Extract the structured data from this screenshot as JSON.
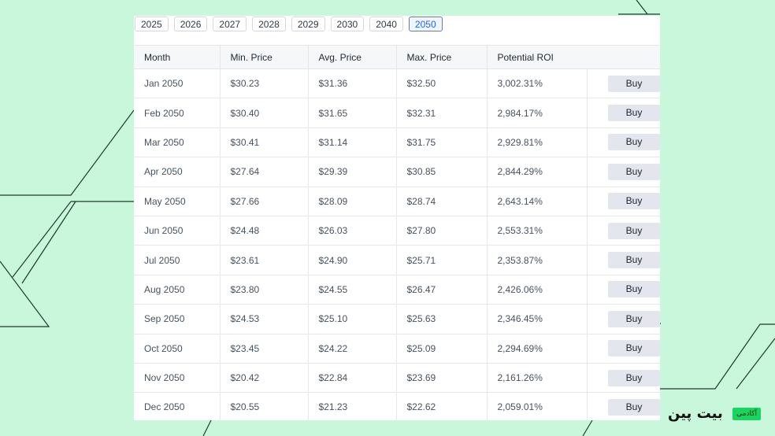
{
  "years": [
    "2025",
    "2026",
    "2027",
    "2028",
    "2029",
    "2030",
    "2040",
    "2050"
  ],
  "active_year": "2050",
  "table": {
    "headers": [
      "Month",
      "Min. Price",
      "Avg. Price",
      "Max. Price",
      "Potential ROI",
      ""
    ],
    "rows": [
      {
        "month": "Jan 2050",
        "min": "$30.23",
        "avg": "$31.36",
        "max": "$32.50",
        "roi": "3,002.31%",
        "action": "Buy"
      },
      {
        "month": "Feb 2050",
        "min": "$30.40",
        "avg": "$31.65",
        "max": "$32.31",
        "roi": "2,984.17%",
        "action": "Buy"
      },
      {
        "month": "Mar 2050",
        "min": "$30.41",
        "avg": "$31.14",
        "max": "$31.75",
        "roi": "2,929.81%",
        "action": "Buy"
      },
      {
        "month": "Apr 2050",
        "min": "$27.64",
        "avg": "$29.39",
        "max": "$30.85",
        "roi": "2,844.29%",
        "action": "Buy"
      },
      {
        "month": "May 2050",
        "min": "$27.66",
        "avg": "$28.09",
        "max": "$28.74",
        "roi": "2,643.14%",
        "action": "Buy"
      },
      {
        "month": "Jun 2050",
        "min": "$24.48",
        "avg": "$26.03",
        "max": "$27.80",
        "roi": "2,553.31%",
        "action": "Buy"
      },
      {
        "month": "Jul 2050",
        "min": "$23.61",
        "avg": "$24.90",
        "max": "$25.71",
        "roi": "2,353.87%",
        "action": "Buy"
      },
      {
        "month": "Aug 2050",
        "min": "$23.80",
        "avg": "$24.55",
        "max": "$26.47",
        "roi": "2,426.06%",
        "action": "Buy"
      },
      {
        "month": "Sep 2050",
        "min": "$24.53",
        "avg": "$25.10",
        "max": "$25.63",
        "roi": "2,346.45%",
        "action": "Buy"
      },
      {
        "month": "Oct 2050",
        "min": "$23.45",
        "avg": "$24.22",
        "max": "$25.09",
        "roi": "2,294.69%",
        "action": "Buy"
      },
      {
        "month": "Nov 2050",
        "min": "$20.42",
        "avg": "$22.84",
        "max": "$23.69",
        "roi": "2,161.26%",
        "action": "Buy"
      },
      {
        "month": "Dec 2050",
        "min": "$20.55",
        "avg": "$21.23",
        "max": "$22.62",
        "roi": "2,059.01%",
        "action": "Buy"
      }
    ]
  },
  "brand": {
    "word": "بیت پین",
    "tag": "آکادمی"
  },
  "colors": {
    "background": "#c8f7dc",
    "roi": "#22b33a",
    "active_tab": "#2563eb",
    "brand_tag": "#18d55f"
  }
}
